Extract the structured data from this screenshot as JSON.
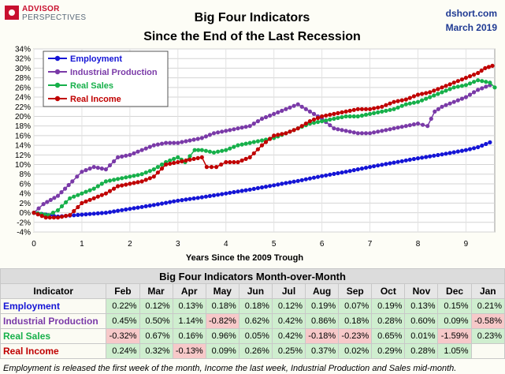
{
  "brand": {
    "line1": "ADVISOR",
    "line2": "PERSPECTIVES"
  },
  "header": {
    "title_line1": "Big Four Indicators",
    "title_line2": "Since the End of the Last Recession",
    "source": "dshort.com",
    "date": "March 2019"
  },
  "colors": {
    "employment": "#1515d6",
    "industrial_production": "#7a3aa8",
    "real_sales": "#16b04a",
    "real_income": "#c00000"
  },
  "chart_data": {
    "type": "line",
    "title": "",
    "xlabel": "Years Since the 2009 Trough",
    "ylabel": "",
    "xlim": [
      0,
      9.6
    ],
    "ylim": [
      -4,
      34
    ],
    "x_ticks": [
      "0",
      "1",
      "2",
      "3",
      "4",
      "5",
      "6",
      "7",
      "8",
      "9"
    ],
    "y_ticks": [
      "-4%",
      "-2%",
      "0%",
      "2%",
      "4%",
      "6%",
      "8%",
      "10%",
      "12%",
      "14%",
      "16%",
      "18%",
      "20%",
      "22%",
      "24%",
      "26%",
      "28%",
      "30%",
      "32%",
      "34%"
    ],
    "grid": true,
    "legend_position": "top-left",
    "series": [
      {
        "name": "Employment",
        "color_key": "employment",
        "points": [
          [
            0,
            0
          ],
          [
            0.5,
            -0.8
          ],
          [
            1,
            -0.4
          ],
          [
            1.5,
            0
          ],
          [
            2,
            0.8
          ],
          [
            2.5,
            1.6
          ],
          [
            3,
            2.5
          ],
          [
            3.5,
            3.2
          ],
          [
            4,
            4.0
          ],
          [
            4.5,
            4.8
          ],
          [
            5,
            5.7
          ],
          [
            5.5,
            6.6
          ],
          [
            6,
            7.6
          ],
          [
            6.5,
            8.5
          ],
          [
            7,
            9.5
          ],
          [
            7.5,
            10.4
          ],
          [
            8,
            11.3
          ],
          [
            8.5,
            12.1
          ],
          [
            9,
            13.0
          ],
          [
            9.25,
            13.6
          ],
          [
            9.5,
            14.6
          ]
        ]
      },
      {
        "name": "Industrial Production",
        "color_key": "industrial_production",
        "points": [
          [
            0,
            0
          ],
          [
            0.2,
            1.8
          ],
          [
            0.5,
            3.5
          ],
          [
            0.8,
            6.5
          ],
          [
            1,
            8.5
          ],
          [
            1.25,
            9.5
          ],
          [
            1.5,
            9.0
          ],
          [
            1.75,
            11.5
          ],
          [
            2,
            12.0
          ],
          [
            2.25,
            13.0
          ],
          [
            2.5,
            14.0
          ],
          [
            2.75,
            14.5
          ],
          [
            3,
            14.5
          ],
          [
            3.25,
            15.0
          ],
          [
            3.5,
            15.5
          ],
          [
            3.75,
            16.5
          ],
          [
            4,
            17.0
          ],
          [
            4.25,
            17.5
          ],
          [
            4.5,
            18.0
          ],
          [
            4.75,
            19.5
          ],
          [
            5,
            20.5
          ],
          [
            5.25,
            21.5
          ],
          [
            5.5,
            22.5
          ],
          [
            5.75,
            21.0
          ],
          [
            6,
            19.5
          ],
          [
            6.25,
            17.5
          ],
          [
            6.5,
            17.0
          ],
          [
            6.75,
            16.5
          ],
          [
            7,
            16.5
          ],
          [
            7.25,
            17.0
          ],
          [
            7.5,
            17.5
          ],
          [
            7.75,
            18.0
          ],
          [
            8,
            18.5
          ],
          [
            8.2,
            18.0
          ],
          [
            8.35,
            21.0
          ],
          [
            8.5,
            22.0
          ],
          [
            8.75,
            23.0
          ],
          [
            9,
            24.0
          ],
          [
            9.25,
            25.5
          ],
          [
            9.5,
            26.5
          ]
        ]
      },
      {
        "name": "Real Sales",
        "color_key": "real_sales",
        "points": [
          [
            0,
            0
          ],
          [
            0.3,
            -0.5
          ],
          [
            0.5,
            0.5
          ],
          [
            0.75,
            3.0
          ],
          [
            1,
            4.0
          ],
          [
            1.25,
            5.0
          ],
          [
            1.5,
            6.5
          ],
          [
            1.75,
            7.0
          ],
          [
            2,
            7.5
          ],
          [
            2.25,
            8.0
          ],
          [
            2.5,
            9.0
          ],
          [
            2.75,
            10.5
          ],
          [
            3,
            11.5
          ],
          [
            3.15,
            10.5
          ],
          [
            3.35,
            13.0
          ],
          [
            3.5,
            13.0
          ],
          [
            3.75,
            12.5
          ],
          [
            4,
            13.0
          ],
          [
            4.25,
            14.0
          ],
          [
            4.5,
            14.5
          ],
          [
            4.75,
            15.0
          ],
          [
            5,
            15.5
          ],
          [
            5.25,
            16.5
          ],
          [
            5.5,
            17.5
          ],
          [
            5.75,
            18.5
          ],
          [
            6,
            19.0
          ],
          [
            6.25,
            19.5
          ],
          [
            6.5,
            20.0
          ],
          [
            6.75,
            20.0
          ],
          [
            7,
            20.5
          ],
          [
            7.25,
            21.0
          ],
          [
            7.5,
            21.5
          ],
          [
            7.75,
            22.5
          ],
          [
            8,
            23.0
          ],
          [
            8.25,
            24.0
          ],
          [
            8.5,
            25.0
          ],
          [
            8.75,
            26.0
          ],
          [
            9,
            26.5
          ],
          [
            9.25,
            27.5
          ],
          [
            9.5,
            27.0
          ],
          [
            9.6,
            26.0
          ]
        ]
      },
      {
        "name": "Real Income",
        "color_key": "real_income",
        "points": [
          [
            0,
            0
          ],
          [
            0.25,
            -1.0
          ],
          [
            0.5,
            -1.0
          ],
          [
            0.75,
            -0.5
          ],
          [
            1,
            2.0
          ],
          [
            1.25,
            3.0
          ],
          [
            1.5,
            4.0
          ],
          [
            1.75,
            5.5
          ],
          [
            2,
            6.0
          ],
          [
            2.25,
            6.5
          ],
          [
            2.5,
            7.5
          ],
          [
            2.75,
            10.0
          ],
          [
            3,
            10.5
          ],
          [
            3.25,
            11.0
          ],
          [
            3.5,
            11.5
          ],
          [
            3.6,
            9.5
          ],
          [
            3.8,
            9.5
          ],
          [
            4,
            10.5
          ],
          [
            4.25,
            10.5
          ],
          [
            4.5,
            11.5
          ],
          [
            4.75,
            14.0
          ],
          [
            5,
            16.0
          ],
          [
            5.25,
            16.5
          ],
          [
            5.5,
            17.5
          ],
          [
            5.75,
            19.0
          ],
          [
            6,
            20.0
          ],
          [
            6.25,
            20.5
          ],
          [
            6.5,
            21.0
          ],
          [
            6.75,
            21.5
          ],
          [
            7,
            21.5
          ],
          [
            7.25,
            22.0
          ],
          [
            7.5,
            23.0
          ],
          [
            7.75,
            23.5
          ],
          [
            8,
            24.5
          ],
          [
            8.25,
            25.0
          ],
          [
            8.5,
            26.0
          ],
          [
            8.75,
            27.0
          ],
          [
            9,
            28.0
          ],
          [
            9.25,
            29.0
          ],
          [
            9.4,
            30.0
          ],
          [
            9.55,
            30.5
          ]
        ]
      }
    ]
  },
  "table": {
    "title": "Big Four Indicators Month-over-Month",
    "header_label": "Indicator",
    "months": [
      "Feb",
      "Mar",
      "Apr",
      "May",
      "Jun",
      "Jul",
      "Aug",
      "Sep",
      "Oct",
      "Nov",
      "Dec",
      "Jan"
    ],
    "rows": [
      {
        "label": "Employment",
        "color_key": "employment",
        "values": [
          "0.22%",
          "0.12%",
          "0.13%",
          "0.18%",
          "0.18%",
          "0.12%",
          "0.19%",
          "0.07%",
          "0.19%",
          "0.13%",
          "0.15%",
          "0.21%"
        ],
        "signs": [
          "pos",
          "pos",
          "pos",
          "pos",
          "pos",
          "pos",
          "pos",
          "pos",
          "pos",
          "pos",
          "pos",
          "pos"
        ]
      },
      {
        "label": "Industrial Production",
        "color_key": "industrial_production",
        "values": [
          "0.45%",
          "0.50%",
          "1.14%",
          "-0.82%",
          "0.62%",
          "0.42%",
          "0.86%",
          "0.18%",
          "0.28%",
          "0.60%",
          "0.09%",
          "-0.58%"
        ],
        "signs": [
          "pos",
          "pos",
          "pos",
          "neg",
          "pos",
          "pos",
          "pos",
          "pos",
          "pos",
          "pos",
          "pos",
          "neg"
        ]
      },
      {
        "label": "Real Sales",
        "color_key": "real_sales",
        "values": [
          "-0.32%",
          "0.67%",
          "0.16%",
          "0.96%",
          "0.05%",
          "0.42%",
          "-0.18%",
          "-0.23%",
          "0.65%",
          "0.01%",
          "-1.59%",
          "0.23%"
        ],
        "signs": [
          "neg",
          "pos",
          "pos",
          "pos",
          "pos",
          "pos",
          "neg",
          "neg",
          "pos",
          "pos",
          "neg",
          "pos"
        ]
      },
      {
        "label": "Real Income",
        "color_key": "real_income",
        "values": [
          "0.24%",
          "0.32%",
          "-0.13%",
          "0.09%",
          "0.26%",
          "0.25%",
          "0.37%",
          "0.02%",
          "0.29%",
          "0.28%",
          "1.05%",
          ""
        ],
        "signs": [
          "pos",
          "pos",
          "neg",
          "pos",
          "pos",
          "pos",
          "pos",
          "pos",
          "pos",
          "pos",
          "pos",
          "blank"
        ]
      }
    ]
  },
  "footnote": "Employment is released the first week of the month, Income the last week, Industrial Production and Sales mid-month."
}
